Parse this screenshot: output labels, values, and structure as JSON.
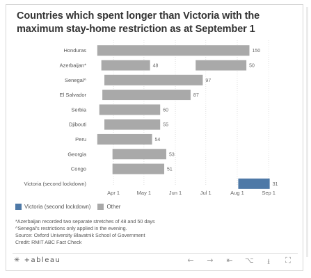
{
  "title": "Countries which spent longer than Victoria with the maximum stay-home restriction as at September 1",
  "chart_data": {
    "type": "bar",
    "subtype": "gantt",
    "categories": [
      "Honduras",
      "Azerbaijan*",
      "Senegal^",
      "El Salvador",
      "Serbia",
      "Djibouti",
      "Peru",
      "Georgia",
      "Congo",
      "Victoria (second lockdown)"
    ],
    "series": [
      {
        "name": "Other",
        "color": "#a9a9a9",
        "bars": [
          {
            "category": "Honduras",
            "start": "2020-03-16",
            "end": "2020-08-13",
            "label": "150"
          },
          {
            "category": "Azerbaijan*",
            "start": "2020-03-20",
            "end": "2020-05-07",
            "label": "48"
          },
          {
            "category": "Azerbaijan*",
            "start": "2020-06-21",
            "end": "2020-08-10",
            "label": "50"
          },
          {
            "category": "Senegal^",
            "start": "2020-03-23",
            "end": "2020-06-28",
            "label": "97"
          },
          {
            "category": "El Salvador",
            "start": "2020-03-21",
            "end": "2020-06-16",
            "label": "87"
          },
          {
            "category": "Serbia",
            "start": "2020-03-18",
            "end": "2020-05-17",
            "label": "60"
          },
          {
            "category": "Djibouti",
            "start": "2020-03-23",
            "end": "2020-05-17",
            "label": "55"
          },
          {
            "category": "Peru",
            "start": "2020-03-16",
            "end": "2020-05-09",
            "label": "54"
          },
          {
            "category": "Georgia",
            "start": "2020-03-31",
            "end": "2020-05-23",
            "label": "53"
          },
          {
            "category": "Congo",
            "start": "2020-03-31",
            "end": "2020-05-21",
            "label": "51"
          }
        ]
      },
      {
        "name": "Victoria (second lockdown)",
        "color": "#4e79a7",
        "bars": [
          {
            "category": "Victoria (second lockdown)",
            "start": "2020-08-02",
            "end": "2020-09-02",
            "label": "31"
          }
        ]
      }
    ],
    "x_ticks": [
      {
        "label": "Apr 1",
        "date": "2020-04-01"
      },
      {
        "label": "May 1",
        "date": "2020-05-01"
      },
      {
        "label": "Jun 1",
        "date": "2020-06-01"
      },
      {
        "label": "Jul 1",
        "date": "2020-07-01"
      },
      {
        "label": "Aug 1",
        "date": "2020-08-01"
      },
      {
        "label": "Sep 1",
        "date": "2020-09-01"
      }
    ],
    "xlim": [
      "2020-03-12",
      "2020-09-05"
    ],
    "grid": "vertical dotted",
    "legend": "bottom-left"
  },
  "legend": {
    "victoria_label": "Victoria (second lockdown)",
    "other_label": "Other",
    "victoria_color": "#4e79a7",
    "other_color": "#a9a9a9"
  },
  "footnotes": [
    "*Azerbaijan recorded two separate stretches of 48 and 50 days",
    "^Senegal's restrictions only applied in the evening.",
    "Source: Oxford University Blavatnik School of Government",
    "Credit: RMIT ABC Fact Check"
  ],
  "toolbar": {
    "logo_icon": "✳",
    "logo_text": "+ableau",
    "icons": [
      {
        "name": "undo-icon",
        "glyph": "←"
      },
      {
        "name": "redo-icon",
        "glyph": "→"
      },
      {
        "name": "revert-icon",
        "glyph": "⇤"
      },
      {
        "name": "share-icon",
        "glyph": "⌥"
      },
      {
        "name": "download-icon",
        "glyph": "⭳"
      },
      {
        "name": "fullscreen-icon",
        "glyph": "⛶"
      }
    ]
  }
}
